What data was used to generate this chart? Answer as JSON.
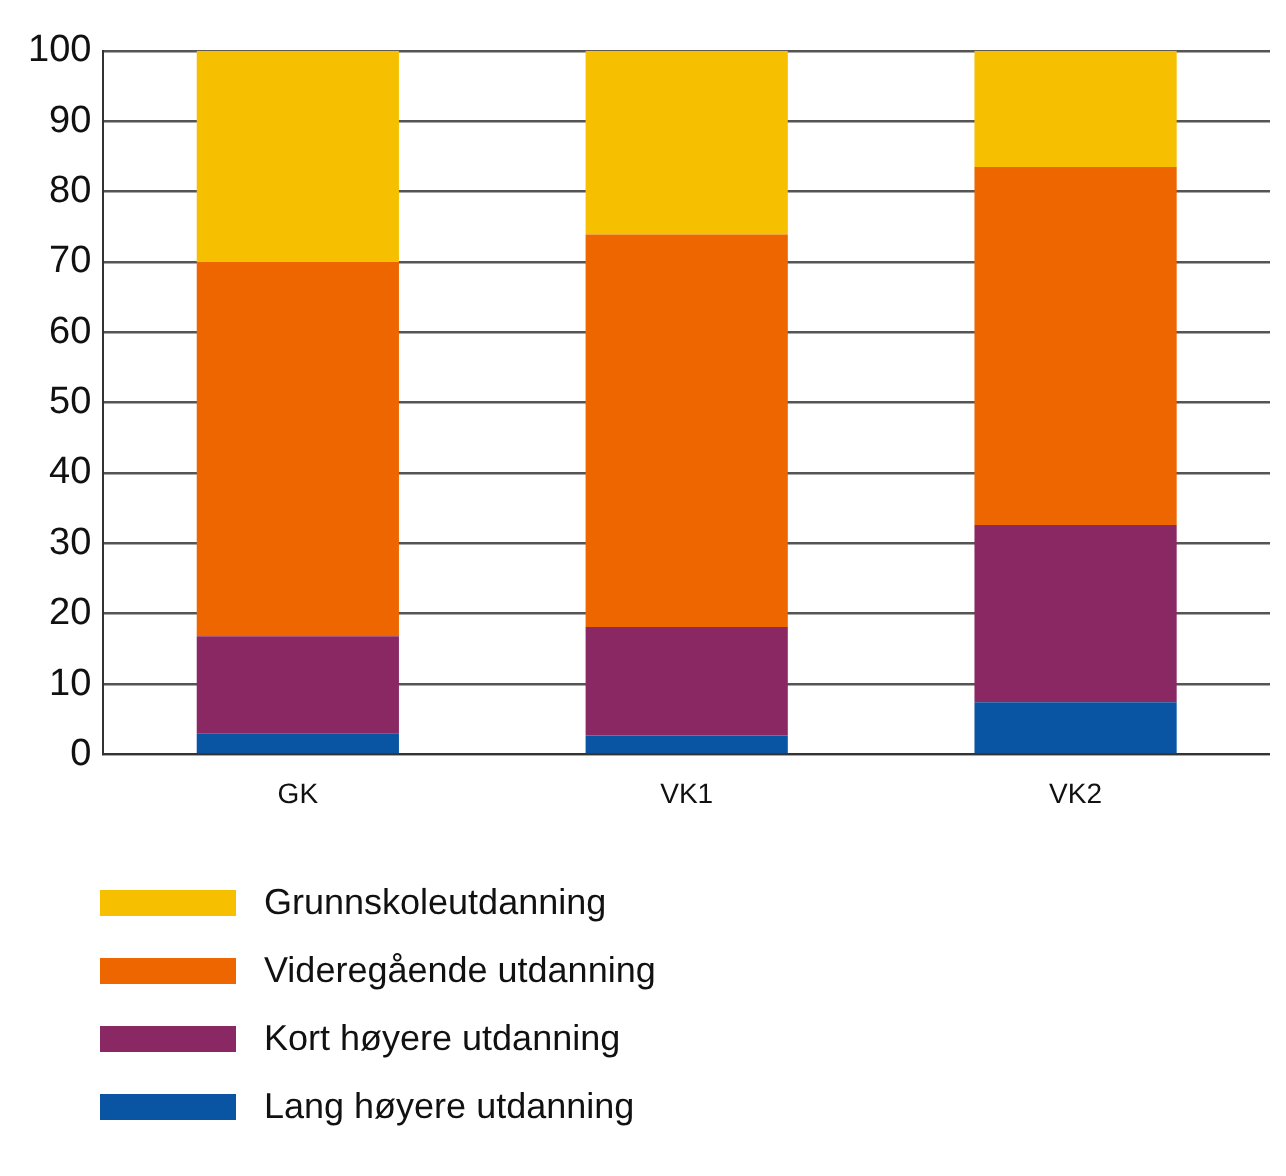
{
  "chart_data": {
    "type": "bar",
    "stacked": true,
    "categories": [
      "GK",
      "VK1",
      "VK2"
    ],
    "series": [
      {
        "name": "Lang høyere utdanning",
        "color": "#0a55a3",
        "values": [
          3,
          2.7,
          7.4
        ]
      },
      {
        "name": "Kort høyere utdanning",
        "color": "#8a2864",
        "values": [
          13.8,
          15.4,
          25.2
        ]
      },
      {
        "name": "Videregående utdanning",
        "color": "#ee6600",
        "values": [
          53.2,
          55.8,
          50.9
        ]
      },
      {
        "name": "Grunnskoleutdanning",
        "color": "#f6bf00",
        "values": [
          30,
          26.1,
          16.5
        ]
      }
    ],
    "ylim": [
      0,
      100
    ],
    "yticks": [
      0,
      10,
      20,
      30,
      40,
      50,
      60,
      70,
      80,
      90,
      100
    ],
    "grid": "y",
    "legend": "bottom"
  }
}
